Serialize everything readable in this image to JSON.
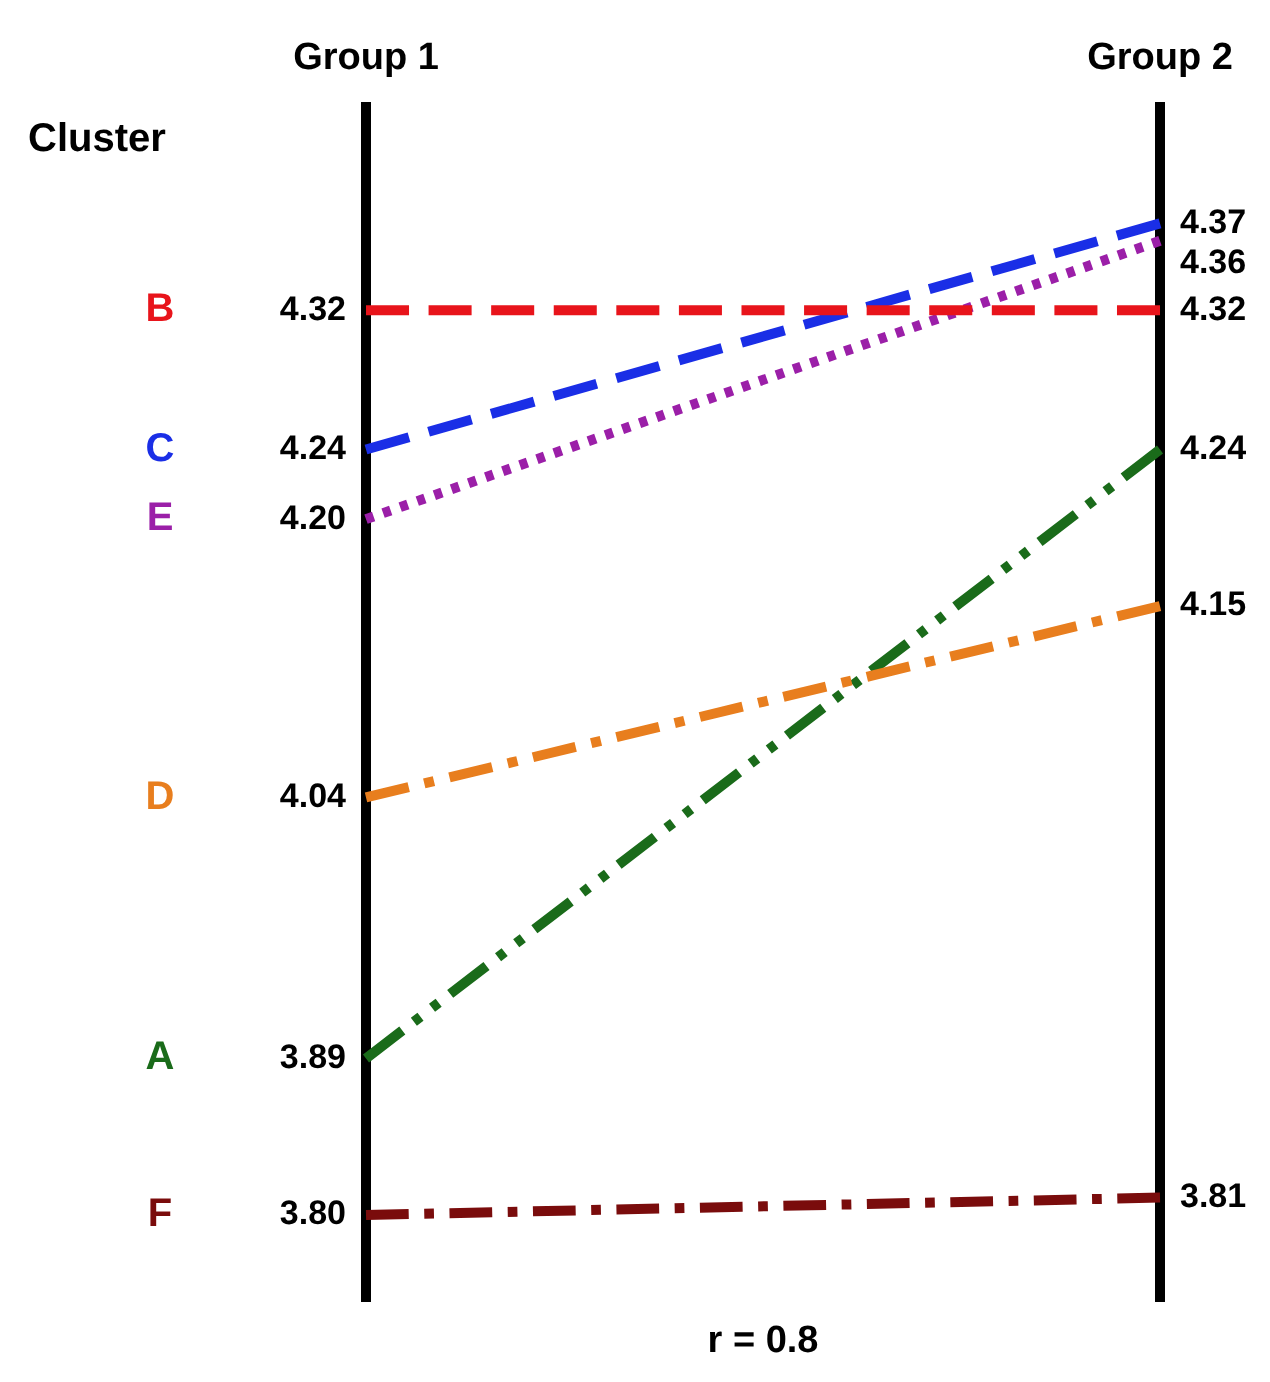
{
  "chart_data": {
    "type": "line",
    "categories": [
      "Group 1",
      "Group 2"
    ],
    "legend_title": "Cluster",
    "ylim": [
      3.75,
      4.44
    ],
    "tick_labels": "x",
    "legend": false,
    "grid": "x",
    "marker": "none",
    "series": [
      {
        "name": "B",
        "color": "#e8141b",
        "values": [
          4.32,
          4.32
        ],
        "value_labels": [
          "4.32",
          "4.32"
        ],
        "line_style": "dashed"
      },
      {
        "name": "C",
        "color": "#1a2ee6",
        "values": [
          4.24,
          4.37
        ],
        "value_labels": [
          "4.24",
          "4.37"
        ],
        "line_style": "dashed"
      },
      {
        "name": "E",
        "color": "#9b1fa8",
        "values": [
          4.2,
          4.36
        ],
        "value_labels": [
          "4.20",
          "4.36"
        ],
        "line_style": "dotted"
      },
      {
        "name": "D",
        "color": "#e87e1e",
        "values": [
          4.04,
          4.15
        ],
        "value_labels": [
          "4.04",
          "4.15"
        ],
        "line_style": "dashdot"
      },
      {
        "name": "A",
        "color": "#1a6b1a",
        "values": [
          3.89,
          4.24
        ],
        "value_labels": [
          "3.89",
          "4.24"
        ],
        "line_style": "dashdotdot"
      },
      {
        "name": "F",
        "color": "#7a0c0c",
        "values": [
          3.8,
          3.81
        ],
        "value_labels": [
          "3.80",
          "3.81"
        ],
        "line_style": "dashdot"
      }
    ],
    "annotations": [
      "r = 0.8"
    ]
  }
}
